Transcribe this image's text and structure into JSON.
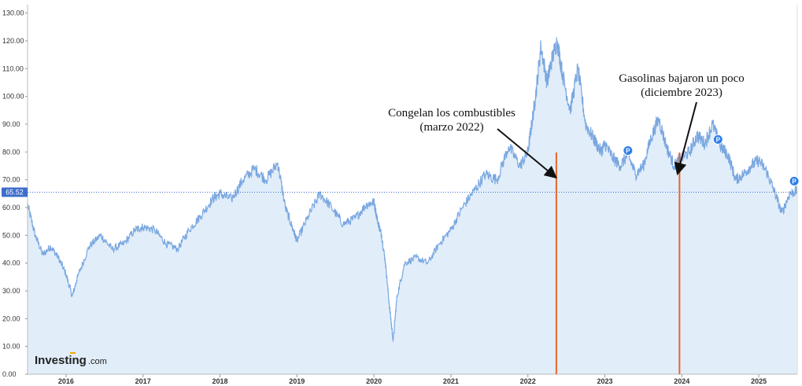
{
  "chart_data": {
    "type": "area",
    "title": "",
    "xlabel": "",
    "ylabel": "",
    "ylim": [
      0,
      133
    ],
    "xlim": [
      2015.5,
      2025.5
    ],
    "y_ticks": [
      "0.00",
      "10.00",
      "20.00",
      "30.00",
      "40.00",
      "50.00",
      "60.00",
      "70.00",
      "80.00",
      "90.00",
      "100.00",
      "110.00",
      "120.00",
      "130.00"
    ],
    "y_tick_values": [
      0,
      10,
      20,
      30,
      40,
      50,
      60,
      70,
      80,
      90,
      100,
      110,
      120,
      130
    ],
    "x_ticks": [
      "2016",
      "2017",
      "2018",
      "2019",
      "2020",
      "2021",
      "2022",
      "2023",
      "2024",
      "2025"
    ],
    "x_tick_values": [
      2016,
      2017,
      2018,
      2019,
      2020,
      2021,
      2022,
      2023,
      2024,
      2025
    ],
    "grid": false,
    "series": [
      {
        "x": [
          2015.5,
          2015.6,
          2015.7,
          2015.8,
          2015.9,
          2016.0,
          2016.08,
          2016.15,
          2016.3,
          2016.45,
          2016.6,
          2016.75,
          2016.9,
          2017.0,
          2017.15,
          2017.3,
          2017.45,
          2017.6,
          2017.75,
          2017.9,
          2018.0,
          2018.15,
          2018.3,
          2018.45,
          2018.6,
          2018.75,
          2018.85,
          2018.95,
          2019.0,
          2019.15,
          2019.3,
          2019.45,
          2019.6,
          2019.75,
          2019.9,
          2020.0,
          2020.05,
          2020.1,
          2020.15,
          2020.2,
          2020.25,
          2020.3,
          2020.4,
          2020.55,
          2020.7,
          2020.85,
          2021.0,
          2021.15,
          2021.3,
          2021.45,
          2021.6,
          2021.75,
          2021.9,
          2022.0,
          2022.05,
          2022.1,
          2022.17,
          2022.25,
          2022.3,
          2022.38,
          2022.45,
          2022.55,
          2022.65,
          2022.75,
          2022.85,
          2022.95,
          2023.0,
          2023.1,
          2023.2,
          2023.3,
          2023.4,
          2023.5,
          2023.6,
          2023.7,
          2023.8,
          2023.9,
          2024.0,
          2024.1,
          2024.2,
          2024.3,
          2024.4,
          2024.5,
          2024.6,
          2024.7,
          2024.8,
          2024.9,
          2025.0,
          2025.1,
          2025.2,
          2025.3,
          2025.4,
          2025.5
        ],
        "values": [
          61,
          50,
          43,
          46,
          42,
          36,
          28,
          35,
          46,
          50,
          45,
          47,
          52,
          53,
          52,
          47,
          45,
          52,
          57,
          63,
          65,
          63,
          70,
          74,
          70,
          76,
          60,
          52,
          48,
          57,
          65,
          60,
          54,
          56,
          61,
          62,
          55,
          50,
          40,
          25,
          12,
          28,
          40,
          42,
          40,
          47,
          52,
          60,
          66,
          72,
          70,
          82,
          75,
          80,
          90,
          100,
          118,
          105,
          112,
          120,
          108,
          95,
          110,
          90,
          85,
          80,
          83,
          78,
          75,
          79,
          72,
          75,
          85,
          92,
          82,
          75,
          78,
          80,
          86,
          83,
          90,
          82,
          79,
          70,
          72,
          75,
          77,
          73,
          66,
          58,
          65,
          66
        ]
      }
    ],
    "current_value": 65.52,
    "current_value_label": "65.52",
    "markers": [
      {
        "x": 2023.3,
        "y": 80.5,
        "label": "P"
      },
      {
        "x": 2024.47,
        "y": 84.5,
        "label": "P"
      },
      {
        "x": 2025.46,
        "y": 69.5,
        "label": "P"
      }
    ],
    "annotations": [
      {
        "lines": [
          "Congelan los combustibles",
          "(marzo 2022)"
        ],
        "event_x": 2022.37,
        "arrow_to_y": 65.5
      },
      {
        "lines": [
          "Gasolinas bajaron un poco",
          "(diciembre 2023)"
        ],
        "event_x": 2023.97,
        "arrow_to_y": 67
      }
    ],
    "colors": {
      "line": "#7aa7e0",
      "area": "#e1eefa",
      "event_line": "#e8642a",
      "current_line": "#3d6dcc",
      "price_tag": "#3d6dcc",
      "marker": "#2f7fe8",
      "logo_accent": "#f7a600"
    }
  },
  "branding": {
    "logo_main": "Investing",
    "logo_sub": ".com"
  }
}
